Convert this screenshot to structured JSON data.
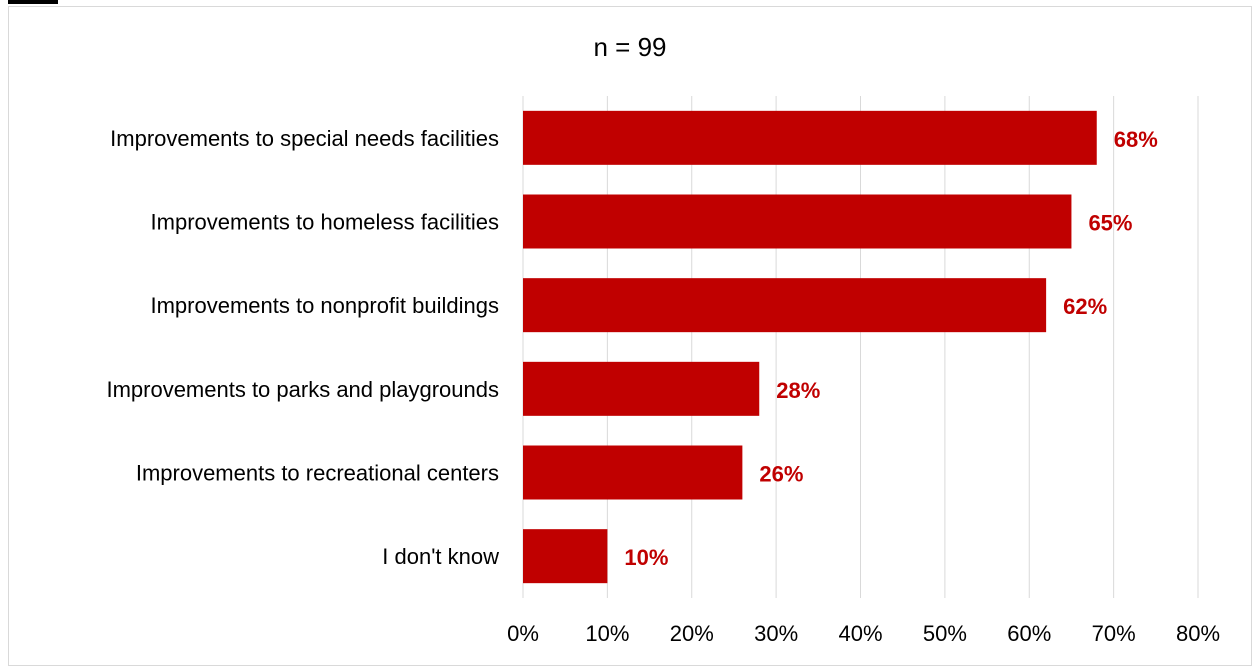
{
  "chart_data": {
    "type": "bar",
    "orientation": "horizontal",
    "subtitle": "n = 99",
    "categories": [
      "Improvements to special needs facilities",
      "Improvements to homeless facilities",
      "Improvements to nonprofit buildings",
      "Improvements to parks and playgrounds",
      "Improvements to recreational centers",
      "I don't know"
    ],
    "values": [
      68,
      65,
      62,
      28,
      26,
      10
    ],
    "value_labels": [
      "68%",
      "65%",
      "62%",
      "28%",
      "26%",
      "10%"
    ],
    "x_ticks": [
      "0%",
      "10%",
      "20%",
      "30%",
      "40%",
      "50%",
      "60%",
      "70%",
      "80%"
    ],
    "xlim": [
      0,
      80
    ],
    "grid": true,
    "legend": "none",
    "colors": {
      "bar": "#c00000",
      "label": "#c00000",
      "grid": "#d9d9d9",
      "text": "#000000"
    }
  }
}
